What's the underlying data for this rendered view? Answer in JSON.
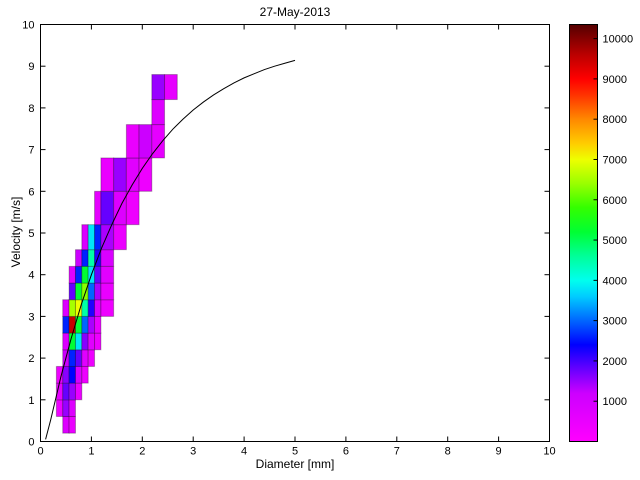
{
  "figure": {
    "background": "#ffffff"
  },
  "chart_data": {
    "type": "heatmap",
    "title": "27-May-2013",
    "xlabel": "Diameter [mm]",
    "ylabel": "Velocity [m/s]",
    "xlim": [
      0,
      10
    ],
    "ylim": [
      0,
      10
    ],
    "xticks": [
      0,
      1,
      2,
      3,
      4,
      5,
      6,
      7,
      8,
      9,
      10
    ],
    "yticks": [
      0,
      1,
      2,
      3,
      4,
      5,
      6,
      7,
      8,
      9,
      10
    ],
    "grid": false,
    "axes_box": true,
    "axis_color": "#000000",
    "curve": {
      "name": "terminal-velocity-curve",
      "color": "#000000",
      "x": [
        0.1,
        0.2,
        0.4,
        0.6,
        0.8,
        1.0,
        1.2,
        1.4,
        1.6,
        1.8,
        2.0,
        2.2,
        2.4,
        2.6,
        2.8,
        3.0,
        3.2,
        3.4,
        3.6,
        3.8,
        4.0,
        4.2,
        4.4,
        4.6,
        4.8,
        5.0
      ],
      "y": [
        0.05,
        0.52,
        1.55,
        2.46,
        3.28,
        4.0,
        4.64,
        5.2,
        5.71,
        6.15,
        6.55,
        6.9,
        7.21,
        7.49,
        7.73,
        7.95,
        8.14,
        8.31,
        8.46,
        8.6,
        8.72,
        8.82,
        8.92,
        9.0,
        9.07,
        9.14
      ]
    },
    "cells": {
      "format": [
        "diameter_left_mm",
        "bin_width_mm",
        "velocity_bottom_ms",
        "bin_height_ms",
        "count"
      ],
      "edge_color": "rgba(0,0,0,0.28)",
      "data": [
        [
          0.437,
          0.125,
          0.2,
          0.4,
          800
        ],
        [
          0.562,
          0.125,
          0.2,
          0.4,
          500
        ],
        [
          0.312,
          0.125,
          0.6,
          0.4,
          400
        ],
        [
          0.437,
          0.125,
          0.6,
          0.4,
          1500
        ],
        [
          0.562,
          0.125,
          0.6,
          0.4,
          800
        ],
        [
          0.312,
          0.125,
          1.0,
          0.4,
          600
        ],
        [
          0.437,
          0.125,
          1.0,
          0.4,
          1800
        ],
        [
          0.562,
          0.125,
          1.0,
          0.4,
          1500
        ],
        [
          0.687,
          0.125,
          1.0,
          0.4,
          500
        ],
        [
          0.312,
          0.125,
          1.4,
          0.4,
          400
        ],
        [
          0.437,
          0.125,
          1.4,
          0.4,
          1600
        ],
        [
          0.562,
          0.125,
          1.4,
          0.4,
          2400
        ],
        [
          0.687,
          0.125,
          1.4,
          0.4,
          900
        ],
        [
          0.812,
          0.125,
          1.4,
          0.4,
          400
        ],
        [
          0.437,
          0.125,
          1.8,
          0.4,
          1200
        ],
        [
          0.562,
          0.125,
          1.8,
          0.4,
          2600
        ],
        [
          0.687,
          0.125,
          1.8,
          0.4,
          1800
        ],
        [
          0.812,
          0.125,
          1.8,
          0.4,
          700
        ],
        [
          0.937,
          0.125,
          1.8,
          0.4,
          400
        ],
        [
          0.437,
          0.125,
          2.2,
          0.4,
          900
        ],
        [
          0.562,
          0.125,
          2.2,
          0.4,
          5200
        ],
        [
          0.687,
          0.125,
          2.2,
          0.4,
          3800
        ],
        [
          0.812,
          0.125,
          2.2,
          0.4,
          1600
        ],
        [
          0.937,
          0.125,
          2.2,
          0.4,
          700
        ],
        [
          1.062,
          0.125,
          2.2,
          0.4,
          400
        ],
        [
          0.437,
          0.125,
          2.6,
          0.4,
          2600
        ],
        [
          0.562,
          0.125,
          2.6,
          0.4,
          9500
        ],
        [
          0.687,
          0.125,
          2.6,
          0.4,
          5200
        ],
        [
          0.812,
          0.125,
          2.6,
          0.4,
          3000
        ],
        [
          0.937,
          0.125,
          2.6,
          0.4,
          1400
        ],
        [
          1.062,
          0.125,
          2.6,
          0.4,
          500
        ],
        [
          0.437,
          0.125,
          3.0,
          0.4,
          800
        ],
        [
          0.562,
          0.125,
          3.0,
          0.4,
          6500
        ],
        [
          0.687,
          0.125,
          3.0,
          0.4,
          7000
        ],
        [
          0.812,
          0.125,
          3.0,
          0.4,
          4500
        ],
        [
          0.937,
          0.125,
          3.0,
          0.4,
          2200
        ],
        [
          1.062,
          0.125,
          3.0,
          0.4,
          900
        ],
        [
          1.187,
          0.25,
          3.0,
          0.4,
          400
        ],
        [
          0.562,
          0.125,
          3.4,
          0.4,
          1800
        ],
        [
          0.687,
          0.125,
          3.4,
          0.4,
          5200
        ],
        [
          0.812,
          0.125,
          3.4,
          0.4,
          6300
        ],
        [
          0.937,
          0.125,
          3.4,
          0.4,
          3000
        ],
        [
          1.062,
          0.125,
          3.4,
          0.4,
          1400
        ],
        [
          1.187,
          0.25,
          3.4,
          0.4,
          500
        ],
        [
          0.562,
          0.125,
          3.8,
          0.4,
          700
        ],
        [
          0.687,
          0.125,
          3.8,
          0.4,
          2600
        ],
        [
          0.812,
          0.125,
          3.8,
          0.4,
          5200
        ],
        [
          0.937,
          0.125,
          3.8,
          0.4,
          3800
        ],
        [
          1.062,
          0.125,
          3.8,
          0.4,
          1800
        ],
        [
          1.187,
          0.25,
          3.8,
          0.4,
          700
        ],
        [
          0.687,
          0.125,
          4.2,
          0.4,
          1200
        ],
        [
          0.812,
          0.125,
          4.2,
          0.4,
          2600
        ],
        [
          0.937,
          0.125,
          4.2,
          0.4,
          4500
        ],
        [
          1.062,
          0.125,
          4.2,
          0.4,
          2200
        ],
        [
          1.187,
          0.25,
          4.2,
          0.4,
          900
        ],
        [
          0.812,
          0.125,
          4.6,
          0.6,
          900
        ],
        [
          0.937,
          0.125,
          4.6,
          0.6,
          3800
        ],
        [
          1.062,
          0.125,
          4.6,
          0.6,
          2600
        ],
        [
          1.187,
          0.25,
          4.6,
          0.6,
          1400
        ],
        [
          1.437,
          0.25,
          4.6,
          0.6,
          500
        ],
        [
          1.062,
          0.125,
          5.2,
          0.8,
          600
        ],
        [
          1.187,
          0.25,
          5.2,
          0.8,
          1800
        ],
        [
          1.437,
          0.25,
          5.2,
          0.8,
          800
        ],
        [
          1.687,
          0.25,
          5.2,
          0.8,
          400
        ],
        [
          1.187,
          0.25,
          6.0,
          0.8,
          500
        ],
        [
          1.437,
          0.25,
          6.0,
          0.8,
          1500
        ],
        [
          1.687,
          0.25,
          6.0,
          0.8,
          700
        ],
        [
          1.937,
          0.25,
          6.0,
          0.8,
          400
        ],
        [
          1.687,
          0.25,
          6.8,
          0.8,
          500
        ],
        [
          1.937,
          0.25,
          6.8,
          0.8,
          1200
        ],
        [
          2.187,
          0.25,
          6.8,
          0.8,
          600
        ],
        [
          2.187,
          0.25,
          7.6,
          0.6,
          800
        ],
        [
          2.187,
          0.25,
          8.2,
          0.6,
          1500
        ],
        [
          2.437,
          0.25,
          8.2,
          0.6,
          600
        ]
      ]
    },
    "colorbar": {
      "position": "right",
      "min": 0,
      "max": 10350,
      "ticks": [
        1000,
        2000,
        3000,
        4000,
        5000,
        6000,
        7000,
        8000,
        9000,
        10000
      ],
      "stops": [
        {
          "value": 0,
          "color": "#ff00ff"
        },
        {
          "value": 1200,
          "color": "#cc00ff"
        },
        {
          "value": 2000,
          "color": "#4400ff"
        },
        {
          "value": 2400,
          "color": "#0000ff"
        },
        {
          "value": 3000,
          "color": "#0066ff"
        },
        {
          "value": 3600,
          "color": "#00ccff"
        },
        {
          "value": 4000,
          "color": "#00ffee"
        },
        {
          "value": 4600,
          "color": "#00ff99"
        },
        {
          "value": 5200,
          "color": "#00ff33"
        },
        {
          "value": 5800,
          "color": "#33ff00"
        },
        {
          "value": 6400,
          "color": "#99ff00"
        },
        {
          "value": 7000,
          "color": "#eeff00"
        },
        {
          "value": 7400,
          "color": "#ffcc00"
        },
        {
          "value": 8000,
          "color": "#ff8800"
        },
        {
          "value": 8600,
          "color": "#ff3300"
        },
        {
          "value": 9000,
          "color": "#ff0000"
        },
        {
          "value": 9600,
          "color": "#bb0000"
        },
        {
          "value": 10350,
          "color": "#550000"
        }
      ]
    }
  }
}
